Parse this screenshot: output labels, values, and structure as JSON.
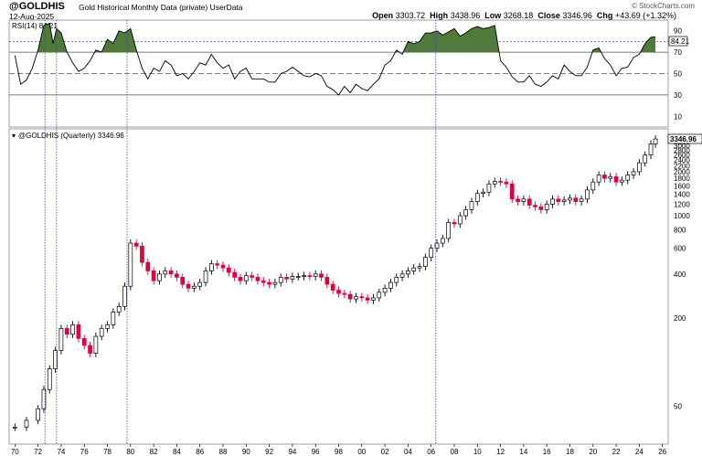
{
  "header": {
    "symbol": "@GOLDHIS",
    "subtitle": "Gold Historical Monthly Data (private)",
    "user_data": "UserData",
    "date": "12-Aug-2025",
    "watermark": "© StockCharts.com",
    "open_label": "Open",
    "open": "3303.72",
    "high_label": "High",
    "high": "3438.96",
    "low_label": "Low",
    "low": "3268.18",
    "close_label": "Close",
    "close": "3346.96",
    "chg_label": "Chg",
    "chg": "+43.69 (+1.32%)"
  },
  "rsi_panel": {
    "label": "RSI(14) 84.21",
    "current_value_tag": "84.21"
  },
  "price_panel": {
    "label": "@GOLDHIS (Quarterly) 3346.96",
    "last_price_tag": "3346.96"
  },
  "colors": {
    "up_bar": "#000000",
    "down_bar": "#e0003c",
    "rsi_fill": "#4f7a3c",
    "vline": "#3b3bd6",
    "hline": "#555555"
  },
  "chart_data": [
    {
      "type": "line",
      "name": "RSI(14)",
      "ylim": [
        0,
        100
      ],
      "y_ticks": [
        10,
        30,
        50,
        70,
        90
      ],
      "reference_lines": [
        30,
        50,
        70,
        80
      ],
      "x": [
        1970,
        1970.5,
        1971,
        1971.5,
        1972,
        1972.5,
        1973,
        1973.3,
        1973.6,
        1974,
        1974.5,
        1975,
        1975.5,
        1976,
        1976.5,
        1977,
        1977.5,
        1978,
        1978.5,
        1979,
        1979.5,
        1980,
        1980.5,
        1981,
        1981.5,
        1982,
        1982.5,
        1983,
        1983.5,
        1984,
        1984.5,
        1985,
        1985.5,
        1986,
        1986.5,
        1987,
        1987.5,
        1988,
        1988.5,
        1989,
        1989.5,
        1990,
        1990.5,
        1991,
        1991.5,
        1992,
        1992.5,
        1993,
        1993.5,
        1994,
        1994.5,
        1995,
        1995.5,
        1996,
        1996.5,
        1997,
        1997.5,
        1998,
        1998.5,
        1999,
        1999.5,
        2000,
        2000.5,
        2001,
        2001.5,
        2002,
        2002.5,
        2003,
        2003.5,
        2004,
        2004.5,
        2005,
        2005.5,
        2006,
        2006.5,
        2007,
        2007.5,
        2008,
        2008.5,
        2009,
        2009.5,
        2010,
        2010.5,
        2011,
        2011.5,
        2012,
        2012.5,
        2013,
        2013.5,
        2014,
        2014.5,
        2015,
        2015.5,
        2016,
        2016.5,
        2017,
        2017.5,
        2018,
        2018.5,
        2019,
        2019.5,
        2020,
        2020.5,
        2021,
        2021.5,
        2022,
        2022.5,
        2023,
        2023.5,
        2024,
        2024.5,
        2025,
        2025.4
      ],
      "values": [
        67,
        40,
        44,
        55,
        72,
        95,
        97,
        78,
        92,
        88,
        70,
        60,
        52,
        55,
        62,
        72,
        70,
        82,
        78,
        90,
        88,
        92,
        72,
        55,
        45,
        55,
        52,
        62,
        58,
        48,
        50,
        45,
        52,
        60,
        58,
        68,
        60,
        55,
        58,
        45,
        52,
        55,
        45,
        45,
        45,
        42,
        42,
        50,
        52,
        56,
        52,
        48,
        47,
        50,
        48,
        38,
        35,
        30,
        38,
        32,
        40,
        36,
        34,
        40,
        45,
        58,
        62,
        72,
        68,
        80,
        78,
        80,
        88,
        88,
        90,
        86,
        89,
        92,
        85,
        88,
        92,
        94,
        92,
        93,
        95,
        62,
        56,
        47,
        42,
        42,
        48,
        40,
        38,
        42,
        48,
        45,
        58,
        52,
        48,
        48,
        56,
        72,
        74,
        64,
        58,
        48,
        55,
        56,
        65,
        68,
        78,
        84,
        84.21
      ]
    },
    {
      "type": "bar",
      "name": "@GOLDHIS (Quarterly)",
      "scale": "log",
      "y_ticks": [
        50,
        200,
        400,
        600,
        800,
        1000,
        1200,
        1400,
        1600,
        1800,
        2000,
        2200,
        2400,
        2600,
        2800,
        3000,
        3200
      ],
      "x_ticks": [
        "70",
        "72",
        "74",
        "76",
        "78",
        "80",
        "82",
        "84",
        "86",
        "88",
        "90",
        "92",
        "94",
        "96",
        "98",
        "00",
        "02",
        "04",
        "06",
        "08",
        "10",
        "12",
        "14",
        "16",
        "18",
        "20",
        "22",
        "24",
        "26"
      ],
      "x": [
        1970,
        1971,
        1972,
        1972.5,
        1973,
        1973.5,
        1974,
        1974.5,
        1975,
        1975.5,
        1976,
        1976.5,
        1977,
        1977.5,
        1978,
        1978.5,
        1979,
        1979.5,
        1980,
        1980.5,
        1981,
        1981.5,
        1982,
        1982.5,
        1983,
        1983.5,
        1984,
        1984.5,
        1985,
        1985.5,
        1986,
        1986.5,
        1987,
        1987.5,
        1988,
        1988.5,
        1989,
        1989.5,
        1990,
        1990.5,
        1991,
        1991.5,
        1992,
        1992.5,
        1993,
        1993.5,
        1994,
        1994.5,
        1995,
        1995.5,
        1996,
        1996.5,
        1997,
        1997.5,
        1998,
        1998.5,
        1999,
        1999.5,
        2000,
        2000.5,
        2001,
        2001.5,
        2002,
        2002.5,
        2003,
        2003.5,
        2004,
        2004.5,
        2005,
        2005.5,
        2006,
        2006.5,
        2007,
        2007.5,
        2008,
        2008.5,
        2009,
        2009.5,
        2010,
        2010.5,
        2011,
        2011.5,
        2012,
        2012.5,
        2013,
        2013.5,
        2014,
        2014.5,
        2015,
        2015.5,
        2016,
        2016.5,
        2017,
        2017.5,
        2018,
        2018.5,
        2019,
        2019.5,
        2020,
        2020.5,
        2021,
        2021.5,
        2022,
        2022.5,
        2023,
        2023.5,
        2024,
        2024.5,
        2025,
        2025.4
      ],
      "values": [
        36,
        40,
        48,
        65,
        90,
        120,
        170,
        155,
        180,
        145,
        130,
        115,
        150,
        170,
        180,
        220,
        240,
        330,
        650,
        620,
        480,
        420,
        360,
        400,
        420,
        400,
        380,
        340,
        320,
        330,
        350,
        420,
        470,
        460,
        440,
        410,
        380,
        360,
        390,
        380,
        360,
        350,
        340,
        350,
        380,
        370,
        385,
        385,
        390,
        385,
        400,
        380,
        340,
        310,
        295,
        290,
        270,
        280,
        275,
        265,
        275,
        300,
        320,
        350,
        380,
        400,
        420,
        440,
        450,
        520,
        600,
        650,
        700,
        900,
        880,
        1000,
        1100,
        1250,
        1420,
        1450,
        1650,
        1720,
        1700,
        1650,
        1300,
        1250,
        1300,
        1180,
        1150,
        1100,
        1200,
        1300,
        1250,
        1280,
        1320,
        1250,
        1300,
        1500,
        1700,
        1900,
        1800,
        1850,
        1700,
        1750,
        1900,
        2000,
        2300,
        2600,
        3100,
        3346.96
      ]
    }
  ]
}
